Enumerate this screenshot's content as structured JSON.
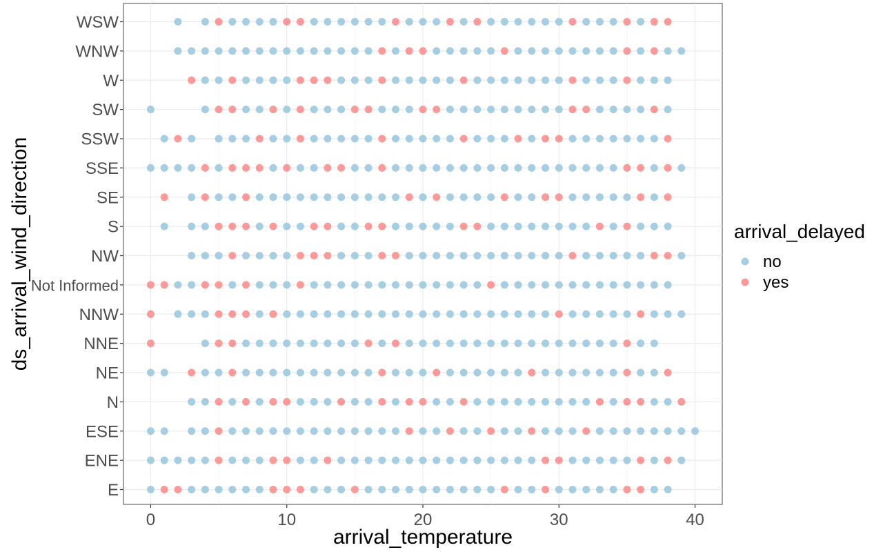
{
  "chart_data": {
    "type": "scatter",
    "xlabel": "arrival_temperature",
    "ylabel": "ds_arrival_wind_direction",
    "xlim": [
      -2,
      42
    ],
    "x_ticks": [
      0,
      10,
      20,
      30,
      40
    ],
    "categories": [
      "E",
      "ENE",
      "ESE",
      "N",
      "NE",
      "NNE",
      "NNW",
      "Not Informed",
      "NW",
      "S",
      "SE",
      "SSE",
      "SSW",
      "SW",
      "W",
      "WNW",
      "WSW"
    ],
    "grid": true,
    "legend": {
      "title": "arrival_delayed",
      "placement": "right",
      "entries": [
        {
          "key": "no",
          "label": "no",
          "color": "#A6CEE3"
        },
        {
          "key": "yes",
          "label": "yes",
          "color": "#FB9A99"
        }
      ]
    },
    "colors": {
      "no": "#A6CEE3",
      "yes": "#FB9A99"
    },
    "series_by_category": {
      "WSW": {
        "no": [
          2,
          4,
          6,
          7,
          8,
          9,
          12,
          13,
          14,
          15,
          16,
          17,
          19,
          20,
          21,
          23,
          25,
          26,
          27,
          28,
          29,
          30,
          32,
          33,
          34,
          36
        ],
        "yes": [
          5,
          10,
          11,
          18,
          22,
          24,
          31,
          35,
          37,
          38
        ]
      },
      "WNW": {
        "no": [
          2,
          3,
          4,
          5,
          6,
          7,
          8,
          9,
          10,
          11,
          12,
          13,
          14,
          15,
          16,
          18,
          21,
          22,
          23,
          24,
          25,
          27,
          28,
          29,
          30,
          31,
          32,
          33,
          34,
          36,
          38,
          39
        ],
        "yes": [
          17,
          19,
          20,
          26,
          35,
          37
        ]
      },
      "W": {
        "no": [
          4,
          5,
          7,
          8,
          9,
          10,
          14,
          15,
          16,
          18,
          19,
          20,
          21,
          22,
          24,
          25,
          26,
          27,
          28,
          29,
          30,
          32,
          33,
          34,
          36,
          37,
          38
        ],
        "yes": [
          3,
          6,
          11,
          12,
          13,
          17,
          23,
          31,
          35
        ]
      },
      "SW": {
        "no": [
          0,
          4,
          7,
          8,
          10,
          12,
          13,
          14,
          17,
          18,
          19,
          22,
          23,
          24,
          25,
          26,
          27,
          28,
          29,
          30,
          33,
          34,
          35,
          36,
          38
        ],
        "yes": [
          5,
          6,
          9,
          11,
          15,
          16,
          20,
          21,
          31,
          32,
          37
        ]
      },
      "SSW": {
        "no": [
          1,
          3,
          5,
          6,
          7,
          9,
          10,
          12,
          13,
          14,
          15,
          16,
          18,
          19,
          20,
          21,
          22,
          24,
          25,
          26,
          28,
          31,
          32,
          33,
          34,
          35,
          36,
          37
        ],
        "yes": [
          2,
          8,
          11,
          17,
          23,
          27,
          29,
          30,
          38
        ]
      },
      "SSE": {
        "no": [
          0,
          1,
          2,
          3,
          5,
          9,
          11,
          12,
          15,
          16,
          18,
          19,
          20,
          21,
          22,
          23,
          24,
          25,
          26,
          27,
          28,
          29,
          30,
          31,
          32,
          33,
          34,
          37,
          39
        ],
        "yes": [
          4,
          6,
          7,
          8,
          10,
          13,
          14,
          17,
          35,
          36,
          38
        ]
      },
      "SE": {
        "no": [
          3,
          5,
          6,
          8,
          9,
          10,
          11,
          12,
          13,
          14,
          15,
          16,
          17,
          18,
          20,
          22,
          23,
          24,
          25,
          27,
          28,
          31,
          32,
          33,
          34,
          35,
          37
        ],
        "yes": [
          1,
          4,
          7,
          19,
          21,
          26,
          29,
          30,
          36,
          38
        ]
      },
      "S": {
        "no": [
          1,
          3,
          4,
          8,
          10,
          11,
          14,
          15,
          18,
          19,
          20,
          21,
          22,
          25,
          26,
          27,
          28,
          29,
          30,
          31,
          32,
          34,
          36,
          37,
          38
        ],
        "yes": [
          5,
          6,
          7,
          9,
          12,
          13,
          16,
          17,
          23,
          24,
          33,
          35
        ]
      },
      "NW": {
        "no": [
          3,
          4,
          5,
          7,
          8,
          9,
          10,
          14,
          15,
          16,
          19,
          20,
          21,
          22,
          23,
          24,
          25,
          26,
          27,
          28,
          29,
          30,
          32,
          33,
          34,
          35,
          36,
          39
        ],
        "yes": [
          6,
          11,
          12,
          13,
          17,
          18,
          31,
          37,
          38
        ]
      },
      "Not Informed": {
        "no": [
          2,
          3,
          6,
          8,
          9,
          10,
          12,
          13,
          14,
          15,
          16,
          17,
          18,
          19,
          20,
          21,
          22,
          23,
          24,
          26,
          27,
          28,
          29,
          30,
          31,
          32,
          33,
          34,
          35,
          36,
          37,
          38
        ],
        "yes": [
          0,
          1,
          4,
          5,
          7,
          11,
          25
        ]
      },
      "NNW": {
        "no": [
          2,
          3,
          4,
          8,
          10,
          11,
          12,
          13,
          14,
          15,
          16,
          17,
          18,
          19,
          20,
          21,
          22,
          23,
          24,
          25,
          26,
          27,
          28,
          29,
          31,
          32,
          33,
          34,
          35,
          37,
          38,
          39
        ],
        "yes": [
          0,
          5,
          6,
          7,
          9,
          30,
          36
        ]
      },
      "NNE": {
        "no": [
          4,
          7,
          8,
          9,
          10,
          11,
          12,
          13,
          14,
          15,
          17,
          19,
          20,
          21,
          22,
          23,
          24,
          25,
          26,
          27,
          28,
          29,
          30,
          31,
          32,
          33,
          34,
          36,
          37
        ],
        "yes": [
          0,
          5,
          6,
          16,
          18,
          35
        ]
      },
      "NE": {
        "no": [
          0,
          1,
          4,
          5,
          7,
          8,
          9,
          10,
          11,
          12,
          13,
          14,
          15,
          16,
          18,
          19,
          20,
          22,
          23,
          24,
          25,
          26,
          27,
          29,
          30,
          31,
          32,
          33,
          34,
          36,
          37
        ],
        "yes": [
          3,
          6,
          17,
          21,
          28,
          35,
          38
        ]
      },
      "N": {
        "no": [
          3,
          4,
          6,
          8,
          11,
          12,
          13,
          15,
          16,
          18,
          21,
          22,
          24,
          25,
          26,
          27,
          28,
          29,
          30,
          31,
          32,
          34,
          37,
          38
        ],
        "yes": [
          5,
          7,
          9,
          10,
          14,
          17,
          19,
          20,
          23,
          33,
          35,
          36,
          39
        ]
      },
      "ESE": {
        "no": [
          0,
          1,
          3,
          4,
          6,
          7,
          8,
          9,
          10,
          11,
          12,
          13,
          14,
          15,
          16,
          17,
          18,
          20,
          21,
          23,
          24,
          26,
          27,
          29,
          30,
          31,
          33,
          34,
          35,
          36,
          37,
          38,
          39,
          40
        ],
        "yes": [
          5,
          19,
          22,
          25,
          28,
          32
        ]
      },
      "ENE": {
        "no": [
          0,
          1,
          2,
          3,
          4,
          6,
          7,
          8,
          11,
          12,
          14,
          15,
          16,
          17,
          18,
          19,
          20,
          21,
          22,
          23,
          24,
          25,
          26,
          27,
          28,
          31,
          32,
          33,
          34,
          35,
          37,
          39
        ],
        "yes": [
          5,
          9,
          10,
          13,
          29,
          30,
          36,
          38
        ]
      },
      "E": {
        "no": [
          0,
          3,
          4,
          5,
          6,
          7,
          8,
          12,
          13,
          14,
          16,
          17,
          18,
          19,
          20,
          21,
          22,
          23,
          24,
          25,
          27,
          28,
          30,
          31,
          32,
          33,
          34,
          37,
          38
        ],
        "yes": [
          1,
          2,
          9,
          10,
          11,
          15,
          26,
          29,
          35,
          36
        ]
      }
    }
  }
}
